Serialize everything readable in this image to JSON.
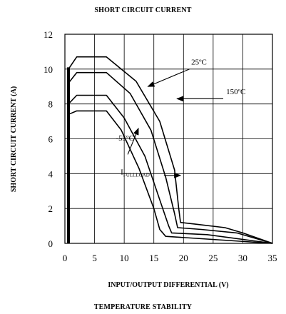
{
  "chart_data": {
    "type": "line",
    "title": "SHORT CIRCUIT CURRENT",
    "subtitle": "TEMPERATURE STABILITY",
    "xlabel": "INPUT/OUTPUT DIFFERENTIAL (V)",
    "ylabel": "SHORT CIRCUIT CURRENT (A)",
    "xlim": [
      0,
      35
    ],
    "ylim": [
      0,
      12
    ],
    "xticks": [
      "0",
      "5",
      "10",
      "15",
      "20",
      "25",
      "30",
      "35"
    ],
    "yticks": [
      "0",
      "2",
      "4",
      "6",
      "8",
      "10",
      "12"
    ],
    "grid": true,
    "series": [
      {
        "name": "",
        "x": [
          0.6,
          0.6,
          2,
          7,
          12,
          16,
          18.5,
          19.2,
          19.5,
          22,
          27,
          30,
          35
        ],
        "y": [
          0,
          10.0,
          10.7,
          10.7,
          9.3,
          7.0,
          4.2,
          2.0,
          1.2,
          1.1,
          0.9,
          0.6,
          0
        ]
      },
      {
        "name": "",
        "x": [
          0.6,
          0.6,
          2,
          7,
          11,
          14.5,
          17,
          18.5,
          19,
          23,
          29,
          35
        ],
        "y": [
          0,
          9.2,
          9.8,
          9.8,
          8.6,
          6.5,
          3.8,
          1.7,
          0.9,
          0.8,
          0.6,
          0
        ]
      },
      {
        "name": "",
        "x": [
          0.6,
          0.6,
          2,
          7,
          10,
          13.5,
          16,
          17.5,
          18,
          24,
          35
        ],
        "y": [
          0,
          8.0,
          8.5,
          8.5,
          7.2,
          5.0,
          2.5,
          1.0,
          0.6,
          0.5,
          0
        ]
      },
      {
        "name": "",
        "x": [
          0.6,
          0.6,
          2,
          7,
          9.5,
          12.5,
          15,
          16,
          17,
          35
        ],
        "y": [
          0,
          7.4,
          7.6,
          7.6,
          6.5,
          4.3,
          2.0,
          0.8,
          0.4,
          0
        ]
      }
    ],
    "fullload_marker": {
      "x": 0.6,
      "y_from": 0,
      "y_to": 10.1
    },
    "annotations": [
      {
        "text": "25ºC",
        "x": 21.3,
        "y": 10.25,
        "arrow_from": [
          21.0,
          10.0
        ],
        "arrow_to": [
          14.0,
          9.0
        ]
      },
      {
        "text": "150ºC",
        "x": 27.2,
        "y": 8.55,
        "arrow_from": [
          26.7,
          8.3
        ],
        "arrow_to": [
          18.9,
          8.3
        ]
      },
      {
        "text": "-55ºC",
        "x": 8.6,
        "y": 5.9,
        "arrow_from": [
          10.6,
          5.1
        ],
        "arrow_to": [
          12.4,
          6.6
        ]
      },
      {
        "text": "I",
        "sub": "FULLLOAD",
        "x": 9.4,
        "y": 3.95,
        "arrow_from": [
          16.7,
          3.9
        ],
        "arrow_to": [
          19.5,
          3.9
        ]
      }
    ]
  }
}
